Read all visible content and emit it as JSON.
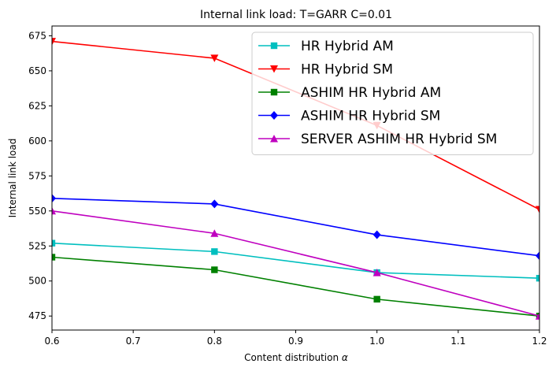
{
  "chart_data": {
    "type": "line",
    "title": "Internal link load: T=GARR C=0.01",
    "xlabel_prefix": "Content distribution ",
    "xlabel_symbol": "α",
    "ylabel": "Internal link load",
    "xlim": [
      0.6,
      1.2
    ],
    "ylim": [
      465,
      682
    ],
    "xticks": [
      0.6,
      0.7,
      0.8,
      0.9,
      1.0,
      1.1,
      1.2
    ],
    "xtick_labels": [
      "0.6",
      "0.7",
      "0.8",
      "0.9",
      "1.0",
      "1.1",
      "1.2"
    ],
    "yticks": [
      475,
      500,
      525,
      550,
      575,
      600,
      625,
      650,
      675
    ],
    "ytick_labels": [
      "475",
      "500",
      "525",
      "550",
      "575",
      "600",
      "625",
      "650",
      "675"
    ],
    "grid": false,
    "legend_position": "top-right",
    "x": [
      0.6,
      0.8,
      1.0,
      1.2
    ],
    "series": [
      {
        "name": "HR Hybrid AM",
        "color": "#00bfbf",
        "marker": "square",
        "values": [
          527,
          521,
          506,
          502
        ]
      },
      {
        "name": "HR Hybrid SM",
        "color": "#ff0000",
        "marker": "triangle-down",
        "values": [
          671,
          659,
          611,
          551
        ]
      },
      {
        "name": "ASHIM HR Hybrid AM",
        "color": "#008000",
        "marker": "square",
        "values": [
          517,
          508,
          487,
          475
        ]
      },
      {
        "name": "ASHIM HR Hybrid SM",
        "color": "#0000ff",
        "marker": "diamond",
        "values": [
          559,
          555,
          533,
          518
        ]
      },
      {
        "name": "SERVER ASHIM HR Hybrid SM",
        "color": "#bf00bf",
        "marker": "triangle-up",
        "values": [
          550,
          534,
          506,
          475
        ]
      }
    ]
  }
}
